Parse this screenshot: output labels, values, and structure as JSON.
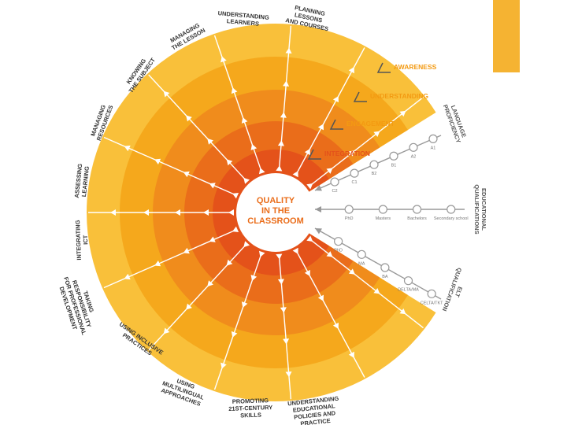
{
  "center": {
    "line1": "QUALITY",
    "line2": "IN THE",
    "line3": "CLASSROOM"
  },
  "colors": {
    "ring1": "#f9c03a",
    "ring2": "#f5a81c",
    "ring3": "#f08c1c",
    "ring4": "#ea6d1a",
    "ring5": "#e4521a",
    "label_accent": "#f39a12",
    "dark_text": "#333333",
    "axis": "#999999",
    "corner_bar": "#f5b332"
  },
  "levels": [
    {
      "label": "AWARENESS"
    },
    {
      "label": "UNDERSTANDING"
    },
    {
      "label": "ENGAGEMENT"
    },
    {
      "label": "INTEGRATION"
    }
  ],
  "categories": [
    {
      "lines": [
        "PLANNING",
        "LESSONS",
        "AND COURSES"
      ]
    },
    {
      "lines": [
        "UNDERSTANDING",
        "LEARNERS"
      ]
    },
    {
      "lines": [
        "MANAGING",
        "THE LESSON"
      ]
    },
    {
      "lines": [
        "KNOWING",
        "THE SUBJECT"
      ]
    },
    {
      "lines": [
        "MANAGING",
        "RESOURCES"
      ]
    },
    {
      "lines": [
        "ASSESSING",
        "LEARNING"
      ]
    },
    {
      "lines": [
        "INTEGRATING",
        "ICT"
      ]
    },
    {
      "lines": [
        "TAKING",
        "RESPONSIBILITY",
        "FOR PROFESSIONAL",
        "DEVELOPMENT"
      ]
    },
    {
      "lines": [
        "USING INCLUSIVE",
        "PRACTICES"
      ]
    },
    {
      "lines": [
        "USING",
        "MULTILINGUAL",
        "APPROACHES"
      ]
    },
    {
      "lines": [
        "PROMOTING",
        "21ST-CENTURY",
        "SKILLS"
      ]
    },
    {
      "lines": [
        "UNDERSTANDING",
        "EDUCATIONAL",
        "POLICIES AND",
        "PRACTICE"
      ]
    }
  ],
  "axes": [
    {
      "title": [
        "LANGUAGE",
        "PROFICIENCY"
      ],
      "nodes": [
        "C2",
        "C1",
        "B2",
        "B1",
        "A2",
        "A1"
      ]
    },
    {
      "title": [
        "EDUCATIONAL",
        "QUALIFICATIONS"
      ],
      "nodes": [
        "PhD",
        "Masters",
        "Bachelors",
        "Secondary school"
      ]
    },
    {
      "title": [
        "ELT",
        "QUALIFICATION"
      ],
      "nodes": [
        "PhD",
        "MA",
        "BA",
        "DELTA/MA",
        "CELTA/TKT"
      ]
    }
  ]
}
